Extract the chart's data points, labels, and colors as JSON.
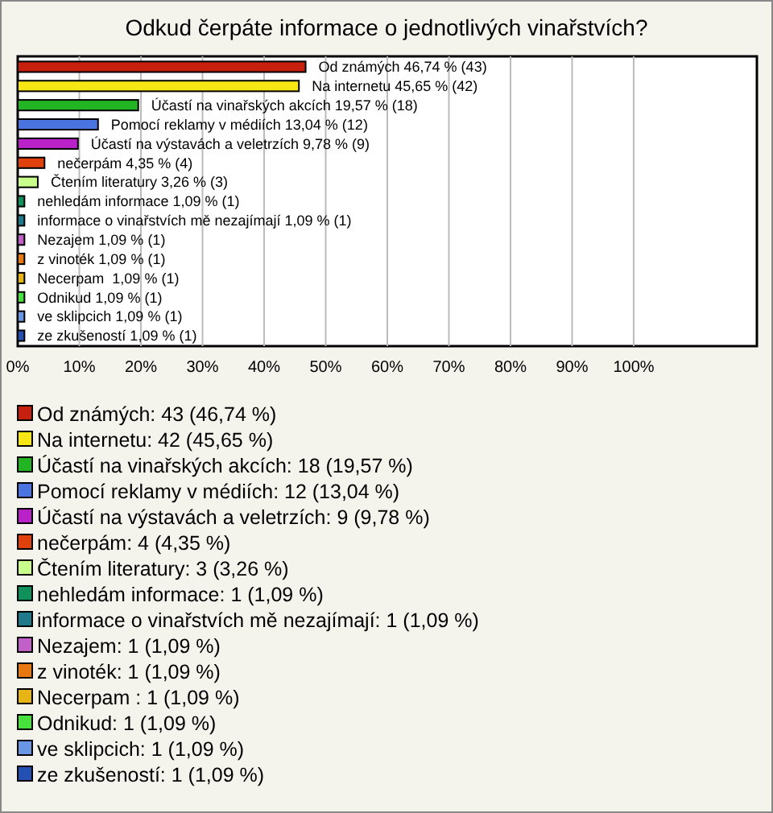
{
  "chart_data": {
    "type": "bar",
    "orientation": "horizontal",
    "title": "Odkud čerpáte informace o jednotlivých vinařstvích?",
    "categories": [
      null,
      null,
      null,
      null,
      null,
      null,
      null,
      null,
      null,
      null,
      null,
      null,
      null,
      null,
      null
    ],
    "series": [
      {
        "name": "Od známých: 43 (46,74 %)",
        "color": "#c8200f",
        "values": [
          46.74,
          null,
          null,
          null,
          null,
          null,
          null,
          null,
          null,
          null,
          null,
          null,
          null,
          null,
          null
        ],
        "value_labels": [
          "Od známých 46,74 % (43)",
          null,
          null,
          null,
          null,
          null,
          null,
          null,
          null,
          null,
          null,
          null,
          null,
          null,
          null
        ]
      },
      {
        "name": "Na internetu: 42 (45,65 %)",
        "color": "#f5e614",
        "values": [
          null,
          45.65,
          null,
          null,
          null,
          null,
          null,
          null,
          null,
          null,
          null,
          null,
          null,
          null,
          null
        ],
        "value_labels": [
          null,
          "Na internetu 45,65 % (42)",
          null,
          null,
          null,
          null,
          null,
          null,
          null,
          null,
          null,
          null,
          null,
          null,
          null
        ]
      },
      {
        "name": "Účastí na vinařských akcích: 18 (19,57 %)",
        "color": "#22b422",
        "values": [
          null,
          null,
          19.57,
          null,
          null,
          null,
          null,
          null,
          null,
          null,
          null,
          null,
          null,
          null,
          null
        ],
        "value_labels": [
          null,
          null,
          "Účastí na vinařských akcích 19,57 % (18)",
          null,
          null,
          null,
          null,
          null,
          null,
          null,
          null,
          null,
          null,
          null,
          null
        ]
      },
      {
        "name": "Pomocí reklamy v médiích: 12 (13,04 %)",
        "color": "#4a74e0",
        "values": [
          null,
          null,
          null,
          13.04,
          null,
          null,
          null,
          null,
          null,
          null,
          null,
          null,
          null,
          null,
          null
        ],
        "value_labels": [
          null,
          null,
          null,
          "Pomocí reklamy v médiích 13,04 % (12)",
          null,
          null,
          null,
          null,
          null,
          null,
          null,
          null,
          null,
          null,
          null
        ]
      },
      {
        "name": "Účastí na výstavách a veletrzích: 9 (9,78 %)",
        "color": "#b822c8",
        "values": [
          null,
          null,
          null,
          null,
          9.78,
          null,
          null,
          null,
          null,
          null,
          null,
          null,
          null,
          null,
          null
        ],
        "value_labels": [
          null,
          null,
          null,
          null,
          "Účastí na výstavách a veletrzích 9,78 % (9)",
          null,
          null,
          null,
          null,
          null,
          null,
          null,
          null,
          null,
          null
        ]
      },
      {
        "name": "nečerpám: 4 (4,35 %)",
        "color": "#e0400c",
        "values": [
          null,
          null,
          null,
          null,
          null,
          4.35,
          null,
          null,
          null,
          null,
          null,
          null,
          null,
          null,
          null
        ],
        "value_labels": [
          null,
          null,
          null,
          null,
          null,
          "nečerpám 4,35 % (4)",
          null,
          null,
          null,
          null,
          null,
          null,
          null,
          null,
          null
        ]
      },
      {
        "name": "Čtením literatury: 3 (3,26 %)",
        "color": "#c8ff8c",
        "values": [
          null,
          null,
          null,
          null,
          null,
          null,
          3.26,
          null,
          null,
          null,
          null,
          null,
          null,
          null,
          null
        ],
        "value_labels": [
          null,
          null,
          null,
          null,
          null,
          null,
          "Čtením literatury 3,26 % (3)",
          null,
          null,
          null,
          null,
          null,
          null,
          null,
          null
        ]
      },
      {
        "name": "nehledám informace: 1 (1,09 %)",
        "color": "#10905a",
        "values": [
          null,
          null,
          null,
          null,
          null,
          null,
          null,
          1.09,
          null,
          null,
          null,
          null,
          null,
          null,
          null
        ],
        "value_labels": [
          null,
          null,
          null,
          null,
          null,
          null,
          null,
          "nehledám informace 1,09 % (1)",
          null,
          null,
          null,
          null,
          null,
          null,
          null
        ]
      },
      {
        "name": "informace o vinařstvích mě nezajímají: 1 (1,09 %)",
        "color": "#1e7a8a",
        "values": [
          null,
          null,
          null,
          null,
          null,
          null,
          null,
          null,
          1.09,
          null,
          null,
          null,
          null,
          null,
          null
        ],
        "value_labels": [
          null,
          null,
          null,
          null,
          null,
          null,
          null,
          null,
          "informace o vinařstvích mě nezajímají 1,09 % (1)",
          null,
          null,
          null,
          null,
          null,
          null
        ]
      },
      {
        "name": "Nezajem: 1 (1,09 %)",
        "color": "#c060c8",
        "values": [
          null,
          null,
          null,
          null,
          null,
          null,
          null,
          null,
          null,
          1.09,
          null,
          null,
          null,
          null,
          null
        ],
        "value_labels": [
          null,
          null,
          null,
          null,
          null,
          null,
          null,
          null,
          null,
          "Nezajem 1,09 % (1)",
          null,
          null,
          null,
          null,
          null
        ]
      },
      {
        "name": "z vinoték: 1 (1,09 %)",
        "color": "#e87810",
        "values": [
          null,
          null,
          null,
          null,
          null,
          null,
          null,
          null,
          null,
          null,
          1.09,
          null,
          null,
          null,
          null
        ],
        "value_labels": [
          null,
          null,
          null,
          null,
          null,
          null,
          null,
          null,
          null,
          null,
          "z vinoték 1,09 % (1)",
          null,
          null,
          null,
          null
        ]
      },
      {
        "name": "Necerpam : 1 (1,09 %)",
        "color": "#e6b414",
        "values": [
          null,
          null,
          null,
          null,
          null,
          null,
          null,
          null,
          null,
          null,
          null,
          1.09,
          null,
          null,
          null
        ],
        "value_labels": [
          null,
          null,
          null,
          null,
          null,
          null,
          null,
          null,
          null,
          null,
          null,
          "Necerpam  1,09 % (1)",
          null,
          null,
          null
        ]
      },
      {
        "name": "Odnikud: 1 (1,09 %)",
        "color": "#48e03c",
        "values": [
          null,
          null,
          null,
          null,
          null,
          null,
          null,
          null,
          null,
          null,
          null,
          null,
          1.09,
          null,
          null
        ],
        "value_labels": [
          null,
          null,
          null,
          null,
          null,
          null,
          null,
          null,
          null,
          null,
          null,
          null,
          "Odnikud 1,09 % (1)",
          null,
          null
        ]
      },
      {
        "name": "ve sklipcich: 1 (1,09 %)",
        "color": "#6a96e6",
        "values": [
          null,
          null,
          null,
          null,
          null,
          null,
          null,
          null,
          null,
          null,
          null,
          null,
          null,
          1.09,
          null
        ],
        "value_labels": [
          null,
          null,
          null,
          null,
          null,
          null,
          null,
          null,
          null,
          null,
          null,
          null,
          null,
          "ve sklipcich 1,09 % (1)",
          null
        ]
      },
      {
        "name": "ze zkušeností: 1 (1,09 %)",
        "color": "#2450b4",
        "values": [
          null,
          null,
          null,
          null,
          null,
          null,
          null,
          null,
          null,
          null,
          null,
          null,
          null,
          null,
          1.09
        ],
        "value_labels": [
          null,
          null,
          null,
          null,
          null,
          null,
          null,
          null,
          null,
          null,
          null,
          null,
          null,
          null,
          "ze zkušeností 1,09 % (1)"
        ]
      }
    ],
    "xlim": [
      0,
      120
    ],
    "xticks": [
      {
        "value": 0,
        "label": "0%"
      },
      {
        "value": 10,
        "label": "10%"
      },
      {
        "value": 20,
        "label": "20%"
      },
      {
        "value": 30,
        "label": "30%"
      },
      {
        "value": 40,
        "label": "40%"
      },
      {
        "value": 50,
        "label": "50%"
      },
      {
        "value": 60,
        "label": "60%"
      },
      {
        "value": 70,
        "label": "70%"
      },
      {
        "value": 80,
        "label": "80%"
      },
      {
        "value": 90,
        "label": "90%"
      },
      {
        "value": 100,
        "label": "100%"
      }
    ],
    "grid": "x",
    "legend": "bottom"
  }
}
